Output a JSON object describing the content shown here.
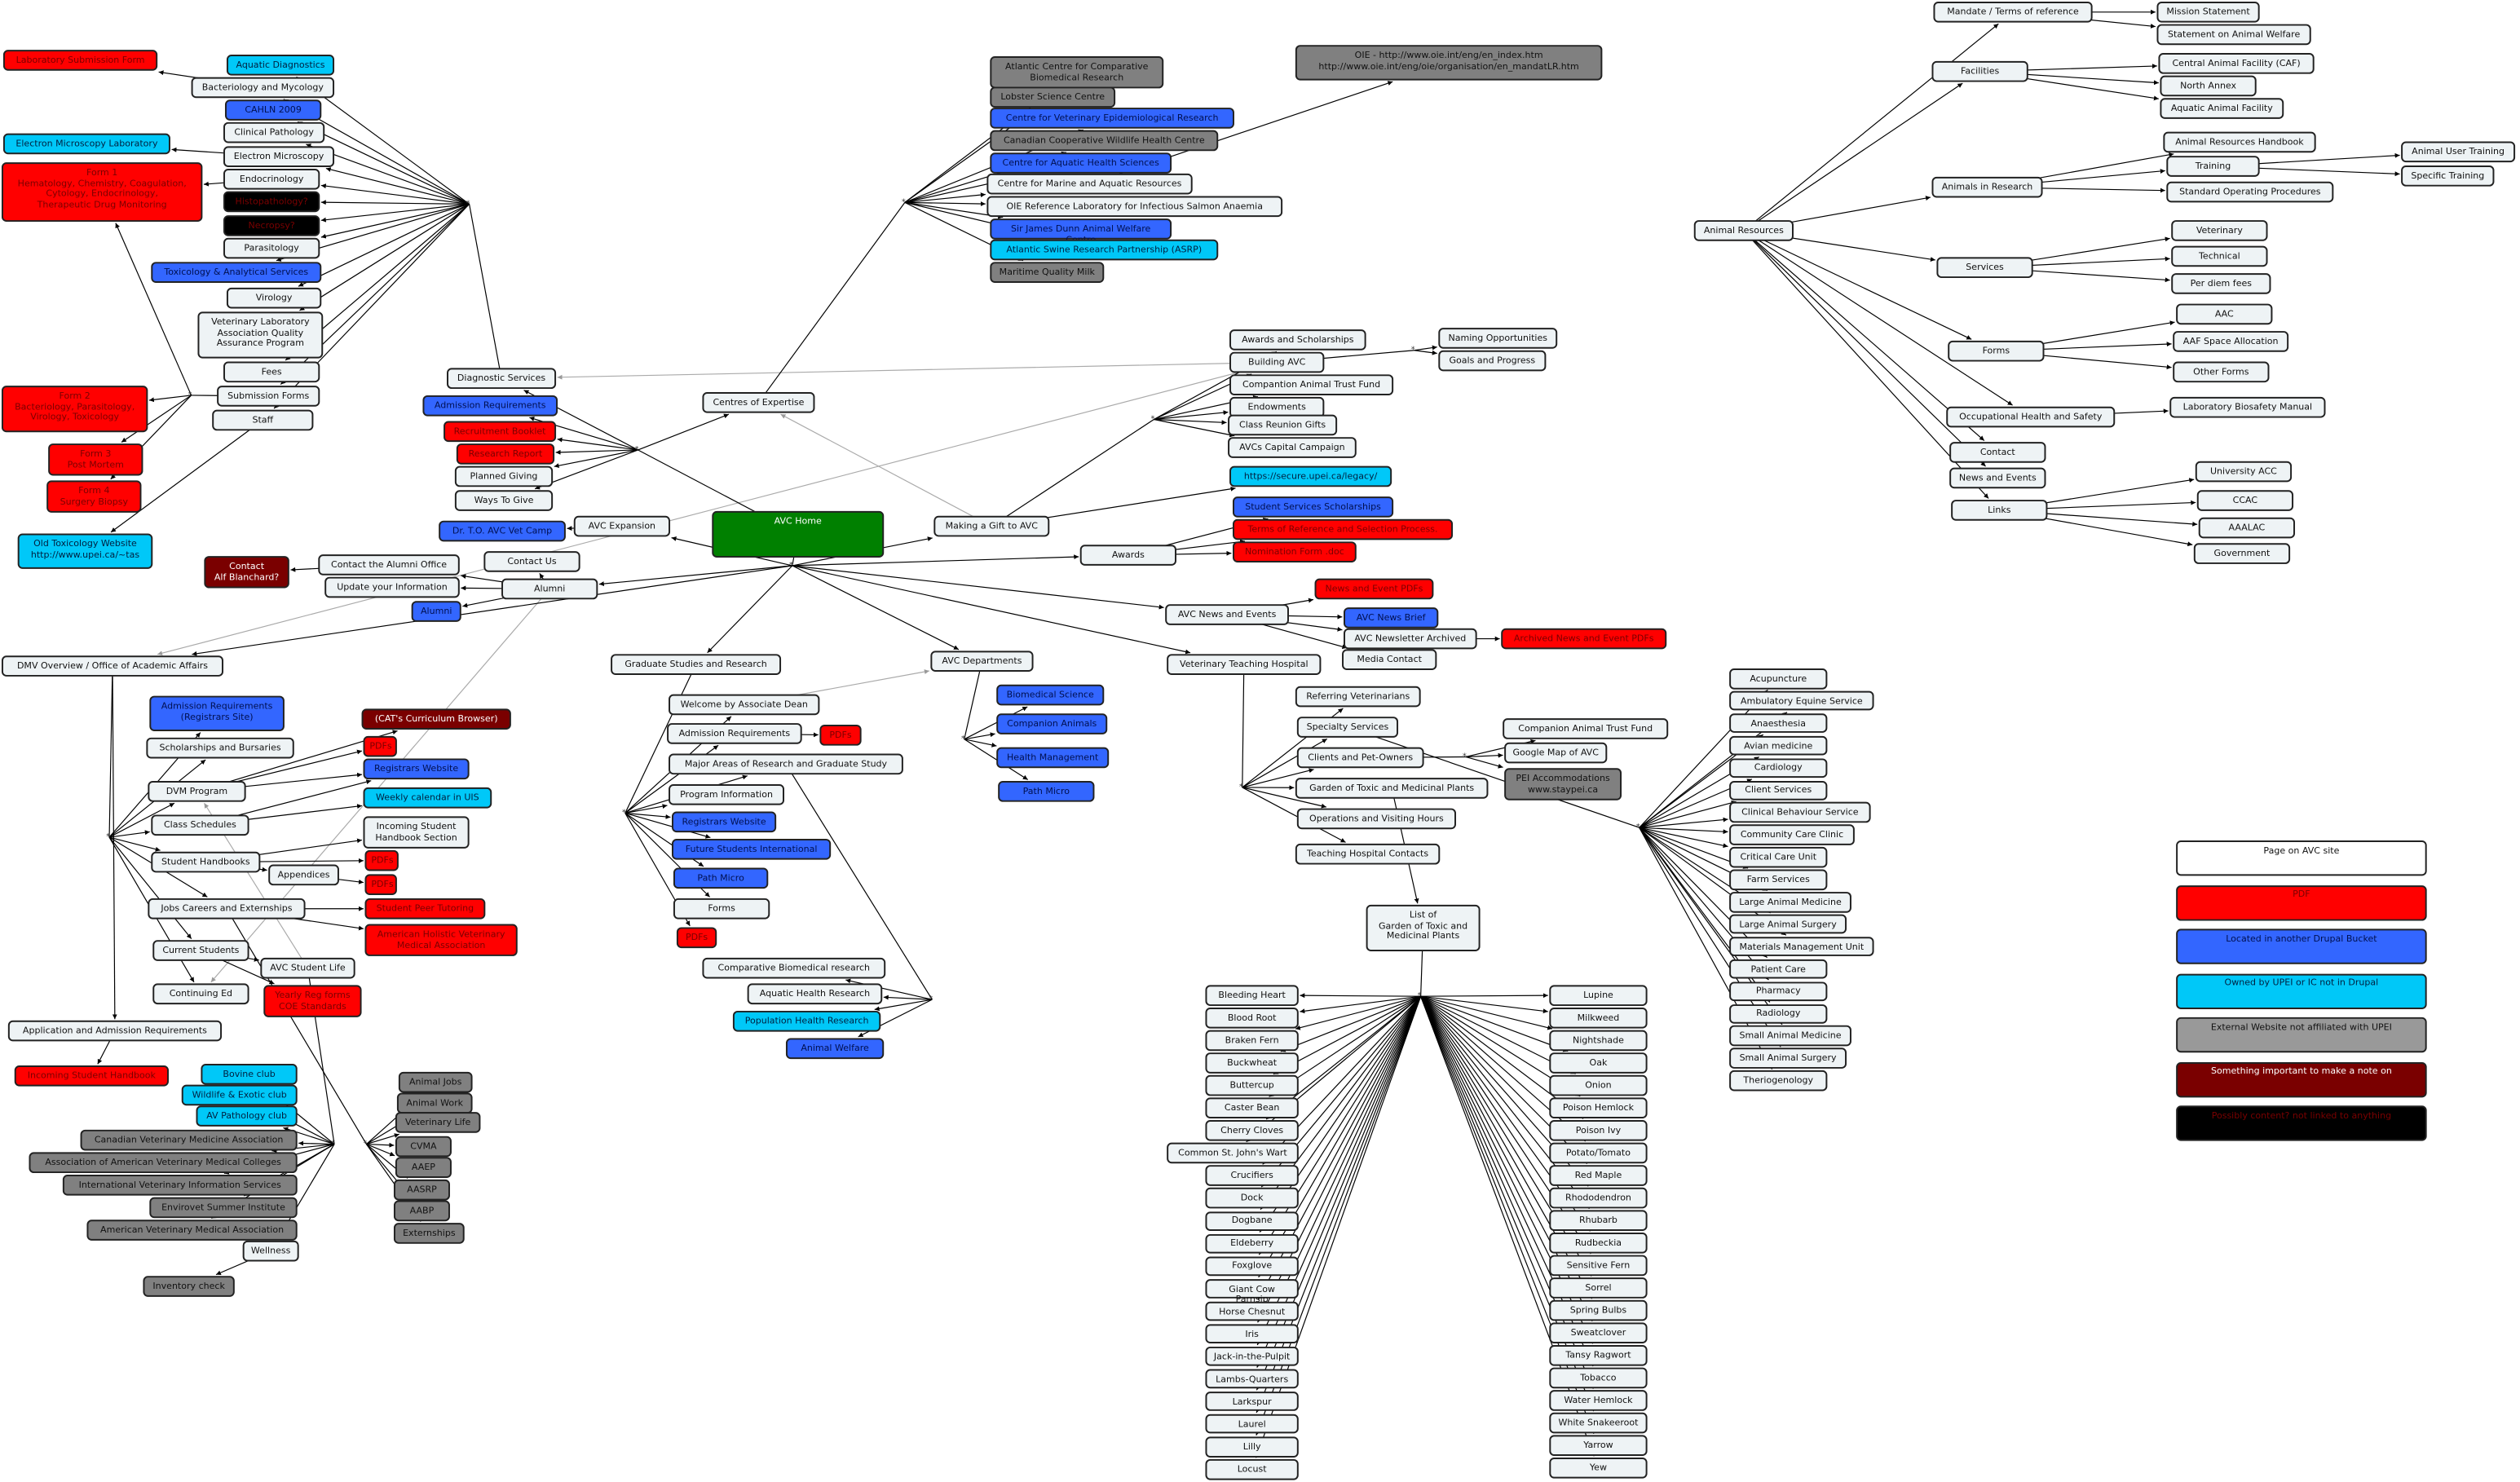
{
  "nodes": {
    "lab_form": {
      "label": "Laboratory Submission Form",
      "kind": "r"
    },
    "aquatic_diag": {
      "label": "Aquatic Diagnostics",
      "kind": "c"
    },
    "bact": {
      "label": "Bacteriology and Mycology",
      "kind": "w"
    },
    "cahln": {
      "label": "CAHLN 2009",
      "kind": "b"
    },
    "clinpath": {
      "label": "Clinical Pathology",
      "kind": "w"
    },
    "em_lab": {
      "label": "Electron Microscopy Laboratory",
      "kind": "c"
    },
    "em": {
      "label": "Electron Microscopy",
      "kind": "w"
    },
    "form1": {
      "label": "Form 1\nHematology, Chemistry, Coagulation,\nCytology, Endocrinology,\nTherapeutic Drug Monitoring",
      "kind": "r"
    },
    "endo": {
      "label": "Endocrinology",
      "kind": "w"
    },
    "histo": {
      "label": "Histopathology?",
      "kind": "k"
    },
    "necro": {
      "label": "Necropsy?",
      "kind": "k"
    },
    "parasit": {
      "label": "Parasitology",
      "kind": "w"
    },
    "toxi": {
      "label": "Toxicology & Analytical Services",
      "kind": "b"
    },
    "viro": {
      "label": "Virology",
      "kind": "w"
    },
    "vlaqap": {
      "label": "Veterinary Laboratory\nAssociation Quality\nAssurance Program",
      "kind": "w"
    },
    "fees": {
      "label": "Fees",
      "kind": "w"
    },
    "subforms": {
      "label": "Submission Forms",
      "kind": "w"
    },
    "staff": {
      "label": "Staff",
      "kind": "w"
    },
    "form2": {
      "label": "Form 2\nBacteriology, Parasitology,\nVirology, Toxicology",
      "kind": "r"
    },
    "form3": {
      "label": "Form 3\nPost Mortem",
      "kind": "r"
    },
    "form4": {
      "label": "Form 4\nSurgery Biopsy",
      "kind": "r"
    },
    "oldtox": {
      "label": "Old Toxicology Website\nhttp://www.upei.ca/~tas",
      "kind": "c"
    },
    "diag": {
      "label": "Diagnostic Services",
      "kind": "w"
    },
    "admreq": {
      "label": "Admission Requirements",
      "kind": "b"
    },
    "recruit": {
      "label": "Recruitment Booklet",
      "kind": "r"
    },
    "research": {
      "label": "Research Report",
      "kind": "r"
    },
    "planned": {
      "label": "Planned Giving",
      "kind": "w"
    },
    "ways": {
      "label": "Ways To Give",
      "kind": "w"
    },
    "centres": {
      "label": "Centres of Expertise",
      "kind": "w"
    },
    "avchome": {
      "label": "AVC Home",
      "kind": "green"
    },
    "avcexp": {
      "label": "AVC Expansion",
      "kind": "w"
    },
    "drtio": {
      "label": "Dr. T.O. AVC Vet Camp",
      "kind": "b"
    },
    "contactus": {
      "label": "Contact Us",
      "kind": "w"
    },
    "contactalum": {
      "label": "Contact the Alumni Office",
      "kind": "w"
    },
    "alf": {
      "label": "Contact\nAlf Blanchard?",
      "kind": "m"
    },
    "updinfo": {
      "label": "Update your Information",
      "kind": "w"
    },
    "alumni": {
      "label": "Alumni",
      "kind": "w"
    },
    "alumnib": {
      "label": "Alumni",
      "kind": "b"
    },
    "dmv": {
      "label": "DMV Overview / Office of Academic Affairs",
      "kind": "w"
    },
    "gradstud": {
      "label": "Graduate Studies and Research",
      "kind": "w"
    },
    "avcdepts": {
      "label": "AVC Departments",
      "kind": "w"
    },
    "making": {
      "label": "Making a Gift to AVC",
      "kind": "w"
    },
    "awards": {
      "label": "Awards",
      "kind": "w"
    },
    "newsev": {
      "label": "AVC News and Events",
      "kind": "w"
    },
    "vth": {
      "label": "Veterinary Teaching Hospital",
      "kind": "w"
    },
    "acc": {
      "label": "Atlantic Centre for Comparative\nBiomedical Research",
      "kind": "g"
    },
    "lobster": {
      "label": "Lobster Science Centre",
      "kind": "g"
    },
    "cver": {
      "label": "Centre for Veterinary Epidemiological Research",
      "kind": "b"
    },
    "ccwhc": {
      "label": "Canadian Cooperative Wildlife Health Centre",
      "kind": "g"
    },
    "cahs": {
      "label": "Centre for Aquatic Health Sciences",
      "kind": "b"
    },
    "cmar": {
      "label": "Centre for Marine and Aquatic Resources",
      "kind": "w"
    },
    "oie_ref": {
      "label": "OIE Reference Laboratory for Infectious Salmon Anaemia",
      "kind": "w"
    },
    "sjd": {
      "label": "Sir James Dunn Animal Welfare Centre",
      "kind": "b"
    },
    "asrp": {
      "label": "Atlantic Swine Research Partnership (ASRP)",
      "kind": "c"
    },
    "mqm": {
      "label": "Maritime Quality Milk",
      "kind": "g"
    },
    "oie": {
      "label": "OIE - http://www.oie.int/eng/en_index.htm\nhttp://www.oie.int/eng/oie/organisation/en_mandatLR.htm",
      "kind": "g"
    },
    "awards_sch": {
      "label": "Awards and Scholarships",
      "kind": "w"
    },
    "building": {
      "label": "Building AVC",
      "kind": "w"
    },
    "cat": {
      "label": "Compantion Animal Trust Fund",
      "kind": "w"
    },
    "endow": {
      "label": "Endowments",
      "kind": "w"
    },
    "reunion": {
      "label": "Class Reunion Gifts",
      "kind": "w"
    },
    "capital": {
      "label": "AVCs Capital Campaign",
      "kind": "w"
    },
    "naming": {
      "label": "Naming Opportunities",
      "kind": "w"
    },
    "goals": {
      "label": "Goals and Progress",
      "kind": "w"
    },
    "legacy": {
      "label": "https://secure.upei.ca/legacy/",
      "kind": "c"
    },
    "sss": {
      "label": "Student Services Scholarships",
      "kind": "b"
    },
    "terms": {
      "label": "Terms of Reference and Selection Process.",
      "kind": "r"
    },
    "nomform": {
      "label": "Nomination Form .doc",
      "kind": "r"
    },
    "newspdf": {
      "label": "News and Event PDFs",
      "kind": "r"
    },
    "newsbrief": {
      "label": "AVC News Brief",
      "kind": "b"
    },
    "newsletter": {
      "label": "AVC Newsletter Archived",
      "kind": "w"
    },
    "archpdf": {
      "label": "Archived News and Event PDFs",
      "kind": "r"
    },
    "media": {
      "label": "Media Contact",
      "kind": "w"
    },
    "welcome": {
      "label": "Welcome by Associate Dean",
      "kind": "w"
    },
    "admreq2": {
      "label": "Admission Requirements",
      "kind": "w"
    },
    "pdfs_g": {
      "label": "PDFs",
      "kind": "r"
    },
    "major": {
      "label": "Major Areas of Research and Graduate Study",
      "kind": "w"
    },
    "proginfo": {
      "label": "Program Information",
      "kind": "w"
    },
    "regweb": {
      "label": "Registrars Website",
      "kind": "b"
    },
    "future": {
      "label": "Future Students International",
      "kind": "b"
    },
    "pathm": {
      "label": "Path Micro",
      "kind": "b"
    },
    "gforms": {
      "label": "Forms",
      "kind": "w"
    },
    "pdfs_g2": {
      "label": "PDFs",
      "kind": "r"
    },
    "compbio": {
      "label": "Comparative Biomedical research",
      "kind": "w"
    },
    "aquatic_h": {
      "label": "Aquatic Health Research",
      "kind": "w"
    },
    "pophealth": {
      "label": "Population Health Research",
      "kind": "c"
    },
    "welfare": {
      "label": "Animal Welfare",
      "kind": "b"
    },
    "biomed": {
      "label": "Biomedical Science",
      "kind": "b"
    },
    "companion": {
      "label": "Companion Animals",
      "kind": "b"
    },
    "healthm": {
      "label": "Health Management",
      "kind": "b"
    },
    "pathmicro": {
      "label": "Path Micro",
      "kind": "b"
    },
    "admreqreg": {
      "label": "Admission Requirements\n(Registrars Site)",
      "kind": "b"
    },
    "scholar": {
      "label": "Scholarships and Bursaries",
      "kind": "w"
    },
    "dvm": {
      "label": "DVM Program",
      "kind": "w"
    },
    "classsched": {
      "label": "Class Schedules",
      "kind": "w"
    },
    "studhb": {
      "label": "Student Handbooks",
      "kind": "w"
    },
    "jobs": {
      "label": "Jobs Careers and Externships",
      "kind": "w"
    },
    "currst": {
      "label": "Current Students",
      "kind": "w"
    },
    "conted": {
      "label": "Continuing Ed",
      "kind": "w"
    },
    "catcur": {
      "label": "(CAT's Curriculum Browser)",
      "kind": "m"
    },
    "pdfs1": {
      "label": "PDFs",
      "kind": "r"
    },
    "regweb2": {
      "label": "Registrars Website",
      "kind": "b"
    },
    "weekly": {
      "label": "Weekly calendar in UIS",
      "kind": "c"
    },
    "incoming": {
      "label": "Incoming Student\nHandbook Section",
      "kind": "w"
    },
    "appendices": {
      "label": "Appendices",
      "kind": "w"
    },
    "pdfs2": {
      "label": "PDFs",
      "kind": "r"
    },
    "pdfs3": {
      "label": "PDFs",
      "kind": "r"
    },
    "peer": {
      "label": "Student Peer Tutoring",
      "kind": "r"
    },
    "holistic": {
      "label": "American Holistic Veterinary\nMedical Association",
      "kind": "r"
    },
    "avcsl": {
      "label": "AVC Student Life",
      "kind": "w"
    },
    "yearly": {
      "label": "Yearly Reg forms\nCOE Standards",
      "kind": "r"
    },
    "appadm": {
      "label": "Application and Admission Requirements",
      "kind": "w"
    },
    "incominghb": {
      "label": "Incoming Student Handbook",
      "kind": "r"
    },
    "bovine": {
      "label": "Bovine club",
      "kind": "c"
    },
    "wildlife": {
      "label": "Wildlife & Exotic club",
      "kind": "c"
    },
    "avpath": {
      "label": "AV Pathology club",
      "kind": "c"
    },
    "cvma_long": {
      "label": "Canadian Veterinary Medicine Association",
      "kind": "g"
    },
    "aavmc": {
      "label": "Association of American Veterinary Medical Colleges",
      "kind": "g"
    },
    "ivis": {
      "label": "International Veterinary Information Services",
      "kind": "g"
    },
    "envirovet": {
      "label": "Envirovet Summer Institute",
      "kind": "g"
    },
    "avma": {
      "label": "American Veterinary Medical Association",
      "kind": "g"
    },
    "wellness": {
      "label": "Wellness",
      "kind": "w"
    },
    "inventory": {
      "label": "Inventory check",
      "kind": "g"
    },
    "animaljobs": {
      "label": "Animal Jobs",
      "kind": "g"
    },
    "animalwork": {
      "label": "Animal Work",
      "kind": "g"
    },
    "vetlife": {
      "label": "Veterinary Life",
      "kind": "g"
    },
    "cvma": {
      "label": "CVMA",
      "kind": "g"
    },
    "aaep": {
      "label": "AAEP",
      "kind": "g"
    },
    "aasrp": {
      "label": "AASRP",
      "kind": "g"
    },
    "aabp": {
      "label": "AABP",
      "kind": "g"
    },
    "extern": {
      "label": "Externships",
      "kind": "g"
    },
    "refvets": {
      "label": "Referring Veterinarians",
      "kind": "w"
    },
    "specialty": {
      "label": "Specialty Services",
      "kind": "w"
    },
    "clients": {
      "label": "Clients and Pet-Owners",
      "kind": "w"
    },
    "garden": {
      "label": "Garden of Toxic and Medicinal Plants",
      "kind": "w"
    },
    "ops": {
      "label": "Operations and Visiting Hours",
      "kind": "w"
    },
    "contacts": {
      "label": "Teaching Hospital Contacts",
      "kind": "w"
    },
    "catf": {
      "label": "Companion Animal Trust Fund",
      "kind": "w"
    },
    "google": {
      "label": "Google Map of AVC",
      "kind": "w"
    },
    "peiacc": {
      "label": "PEI Accommodations\nwww.staypei.ca",
      "kind": "g"
    },
    "list": {
      "label": "List of\nGarden of Toxic and\nMedicinal Plants",
      "kind": "w"
    },
    "ar": {
      "label": "Animal Resources",
      "kind": "w"
    },
    "mandate": {
      "label": "Mandate / Terms of reference",
      "kind": "w"
    },
    "mission": {
      "label": "Mission Statement",
      "kind": "w"
    },
    "statement": {
      "label": "Statement on Animal Welfare",
      "kind": "w"
    },
    "facilities": {
      "label": "Facilities",
      "kind": "w"
    },
    "caf": {
      "label": "Central Animal Facility (CAF)",
      "kind": "w"
    },
    "northannex": {
      "label": "North Annex",
      "kind": "w"
    },
    "aquaticaf": {
      "label": "Aquatic Animal Facility",
      "kind": "w"
    },
    "air": {
      "label": "Animals in Research",
      "kind": "w"
    },
    "arh": {
      "label": "Animal Resources Handbook",
      "kind": "w"
    },
    "training": {
      "label": "Training",
      "kind": "w"
    },
    "sop": {
      "label": "Standard Operating Procedures",
      "kind": "w"
    },
    "aut": {
      "label": "Animal User Training",
      "kind": "w"
    },
    "spectr": {
      "label": "Specific Training",
      "kind": "w"
    },
    "arservices": {
      "label": "Services",
      "kind": "w"
    },
    "vet": {
      "label": "Veterinary",
      "kind": "w"
    },
    "tech": {
      "label": "Technical",
      "kind": "w"
    },
    "perdiem": {
      "label": "Per diem fees",
      "kind": "w"
    },
    "arforms": {
      "label": "Forms",
      "kind": "w"
    },
    "aac": {
      "label": "AAC",
      "kind": "w"
    },
    "aaspace": {
      "label": "AAF Space Allocation",
      "kind": "w"
    },
    "otherf": {
      "label": "Other Forms",
      "kind": "w"
    },
    "ohs": {
      "label": "Occupational Health and Safety",
      "kind": "w"
    },
    "biosafety": {
      "label": "Laboratory Biosafety Manual",
      "kind": "w"
    },
    "arcontact": {
      "label": "Contact",
      "kind": "w"
    },
    "arnews": {
      "label": "News and Events",
      "kind": "w"
    },
    "links": {
      "label": "Links",
      "kind": "w"
    },
    "univacc": {
      "label": "University ACC",
      "kind": "w"
    },
    "ccac": {
      "label": "CCAC",
      "kind": "w"
    },
    "aaalac": {
      "label": "AAALAC",
      "kind": "w"
    },
    "gov": {
      "label": "Government",
      "kind": "w"
    }
  },
  "toxic_plants": {
    "left": [
      "Bleeding Heart",
      "Blood Root",
      "Braken Fern",
      "Buckwheat",
      "Buttercup",
      "Caster Bean",
      "Cherry Cloves",
      "Common St. John's Wart",
      "Crucifiers",
      "Dock",
      "Dogbane",
      "Eldeberry",
      "Foxglove",
      "Giant Cow Parnsip",
      "Horse Chesnut",
      "Iris",
      "Jack-in-the-Pulpit",
      "Lambs-Quarters",
      "Larkspur",
      "Laurel",
      "Lilly",
      "Locust"
    ],
    "right": [
      "Lupine",
      "Milkweed",
      "Nightshade",
      "Oak",
      "Onion",
      "Poison Hemlock",
      "Poison Ivy",
      "Potato/Tomato",
      "Red Maple",
      "Rhododendron",
      "Rhubarb",
      "Rudbeckia",
      "Sensitive Fern",
      "Sorrel",
      "Spring Bulbs",
      "Sweatclover",
      "Tansy Ragwort",
      "Tobacco",
      "Water Hemlock",
      "White Snakeeroot",
      "Yarrow",
      "Yew"
    ]
  },
  "hospital_services": [
    "Acupuncture",
    "Ambulatory Equine Service",
    "Anaesthesia",
    "Avian medicine",
    "Cardiology",
    "Client Services",
    "Clinical Behaviour Service",
    "Community Care Clinic",
    "Critical Care Unit",
    "Farm Services",
    "Large Animal Medicine",
    "Large Animal Surgery",
    "Materials Management Unit",
    "Patient Care",
    "Pharmacy",
    "Radiology",
    "Small Animal Medicine",
    "Small Animal Surgery",
    "Theriogenology"
  ],
  "legend": [
    {
      "label": "Page on AVC site",
      "kind": "white"
    },
    {
      "label": "PDF",
      "kind": "r"
    },
    {
      "label": "Located in another Drupal Bucket",
      "kind": "b"
    },
    {
      "label": "Owned by UPEI or IC not in Drupal",
      "kind": "c"
    },
    {
      "label": "External Website not affiliated with UPEI",
      "kind": "lg"
    },
    {
      "label": "Something important to make a note on",
      "kind": "m"
    },
    {
      "label": "Possibly content? not linked to anything",
      "kind": "k"
    }
  ],
  "colors": {
    "page": "#eef3f5",
    "pdf": "#ff0000",
    "drupal": "#3366ff",
    "upei": "#00c8f8",
    "external": "#808080",
    "note": "#7a0000",
    "possible": "#000000",
    "home": "#008000"
  }
}
